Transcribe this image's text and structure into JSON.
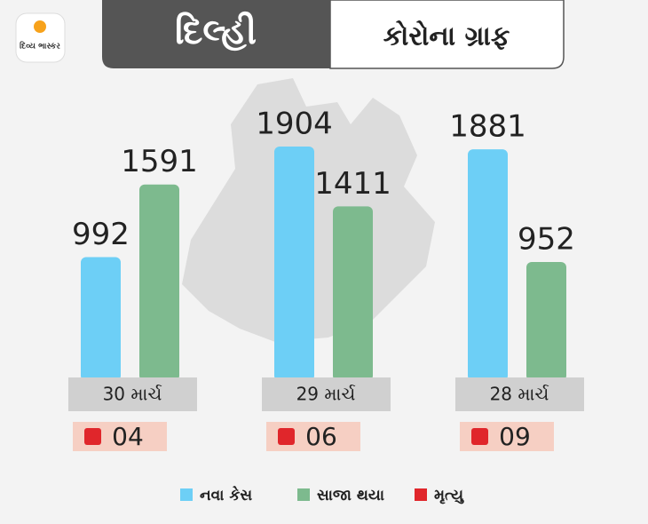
{
  "logo": "દિવ્ય ભાસ્કર",
  "chart_data": {
    "type": "bar",
    "title": "દિલ્હી",
    "subtitle": "કોરોના ગ્રાફ",
    "categories": [
      "30 માર્ચ",
      "29 માર્ચ",
      "28 માર્ચ"
    ],
    "series": [
      {
        "name": "નવા કેસ",
        "color": "#6dcff6",
        "values": [
          992,
          1904,
          1881
        ]
      },
      {
        "name": "સાજા થયા",
        "color": "#7dba8e",
        "values": [
          1591,
          1411,
          952
        ]
      },
      {
        "name": "મૃત્યુ",
        "color": "#e0262b",
        "values": [
          4,
          6,
          9
        ],
        "value_labels": [
          "04",
          "06",
          "09"
        ]
      }
    ]
  }
}
